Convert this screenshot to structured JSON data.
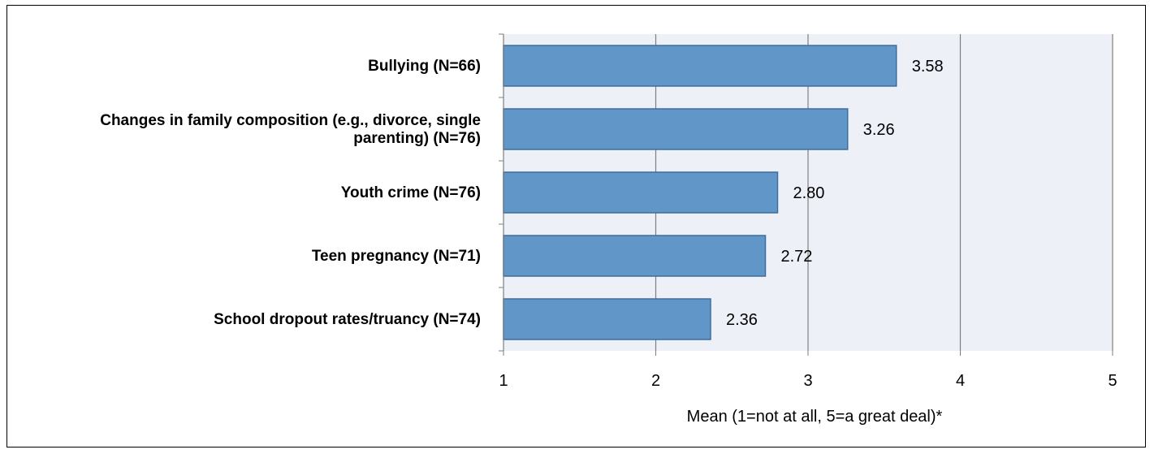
{
  "chart_data": {
    "type": "bar",
    "orientation": "horizontal",
    "categories": [
      [
        "Bullying (N=66)"
      ],
      [
        "Changes in family composition (e.g., divorce, single",
        "parenting) (N=76)"
      ],
      [
        "Youth crime (N=76)"
      ],
      [
        "Teen pregnancy (N=71)"
      ],
      [
        "School dropout rates/truancy (N=74)"
      ]
    ],
    "values": [
      3.58,
      3.26,
      2.8,
      2.72,
      2.36
    ],
    "value_labels": [
      "3.58",
      "3.26",
      "2.80",
      "2.72",
      "2.36"
    ],
    "xlabel": "Mean (1=not at all, 5=a great deal)*",
    "xlim": [
      1,
      5
    ],
    "xticks": [
      "1",
      "2",
      "3",
      "4",
      "5"
    ],
    "grid": "vertical",
    "colors": {
      "bar_fill": "#6096c8",
      "bar_stroke": "#3f6e9c",
      "plot_bg": "#eef0f8",
      "grid": "#7f7f7f"
    }
  }
}
